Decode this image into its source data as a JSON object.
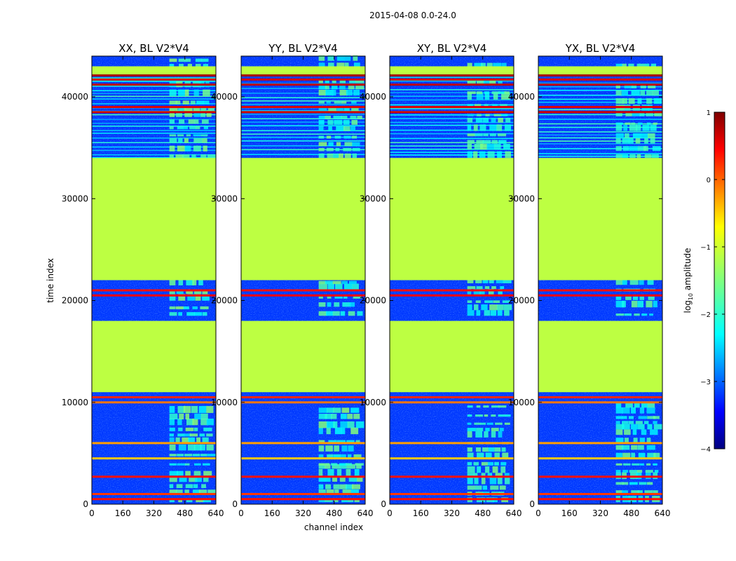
{
  "figure": {
    "suptitle": "2015-04-08 0.0-24.0"
  },
  "chart_data": {
    "type": "heatmap",
    "xlabel": "channel index",
    "ylabel": "time index",
    "xlim": [
      0,
      640
    ],
    "ylim": [
      0,
      44000
    ],
    "x_ticks": [
      0,
      160,
      320,
      480,
      640
    ],
    "y_ticks": [
      0,
      10000,
      20000,
      30000,
      40000
    ],
    "panels": [
      {
        "title": "XX, BL V2*V4",
        "pol": "XX",
        "rfi_strength": 1.0
      },
      {
        "title": "YY, BL V2*V4",
        "pol": "YY",
        "rfi_strength": 1.0
      },
      {
        "title": "XY, BL V2*V4",
        "pol": "XY",
        "rfi_strength": 0.9
      },
      {
        "title": "YX, BL V2*V4",
        "pol": "YX",
        "rfi_strength": 0.85
      }
    ],
    "flagged_blocks": [
      {
        "t_start": 11000,
        "t_end": 18000,
        "log_amp": -1.2
      },
      {
        "t_start": 22000,
        "t_end": 34000,
        "log_amp": -1.2
      },
      {
        "t_start": 42000,
        "t_end": 43000,
        "log_amp": -1.2
      }
    ],
    "bright_rows": [
      {
        "t": 500,
        "log_amp": 0.3
      },
      {
        "t": 1000,
        "log_amp": 0.1
      },
      {
        "t": 2700,
        "log_amp": 0.3
      },
      {
        "t": 4500,
        "log_amp": -0.6
      },
      {
        "t": 6000,
        "log_amp": -0.4
      },
      {
        "t": 10000,
        "log_amp": -0.2
      },
      {
        "t": 10500,
        "log_amp": 0.2
      },
      {
        "t": 20500,
        "log_amp": 0.4
      },
      {
        "t": 21000,
        "log_amp": 0.3
      },
      {
        "t": 38500,
        "log_amp": 0.6
      },
      {
        "t": 39000,
        "log_amp": 0.5
      },
      {
        "t": 41200,
        "log_amp": 0.7
      },
      {
        "t": 41700,
        "log_amp": 0.6
      },
      {
        "t": 42100,
        "log_amp": 0.8
      }
    ],
    "rfi_band": {
      "ch_start": 400,
      "ch_end": 600
    },
    "colorbar": {
      "label": "log10 amplitude",
      "label_main": "log",
      "label_sub": "10",
      "label_rest": " amplitude",
      "vmin": -4,
      "vmax": 1,
      "ticks": [
        1,
        0,
        -1,
        -2,
        -3,
        -4
      ],
      "tick_labels": [
        "1",
        "0",
        "−1",
        "−2",
        "−3",
        "−4"
      ],
      "colormap": "jet",
      "colors": [
        "#00007f",
        "#0000ff",
        "#007fff",
        "#00ffff",
        "#7fff7f",
        "#ffff00",
        "#ff7f00",
        "#ff0000",
        "#7f0000"
      ]
    }
  }
}
